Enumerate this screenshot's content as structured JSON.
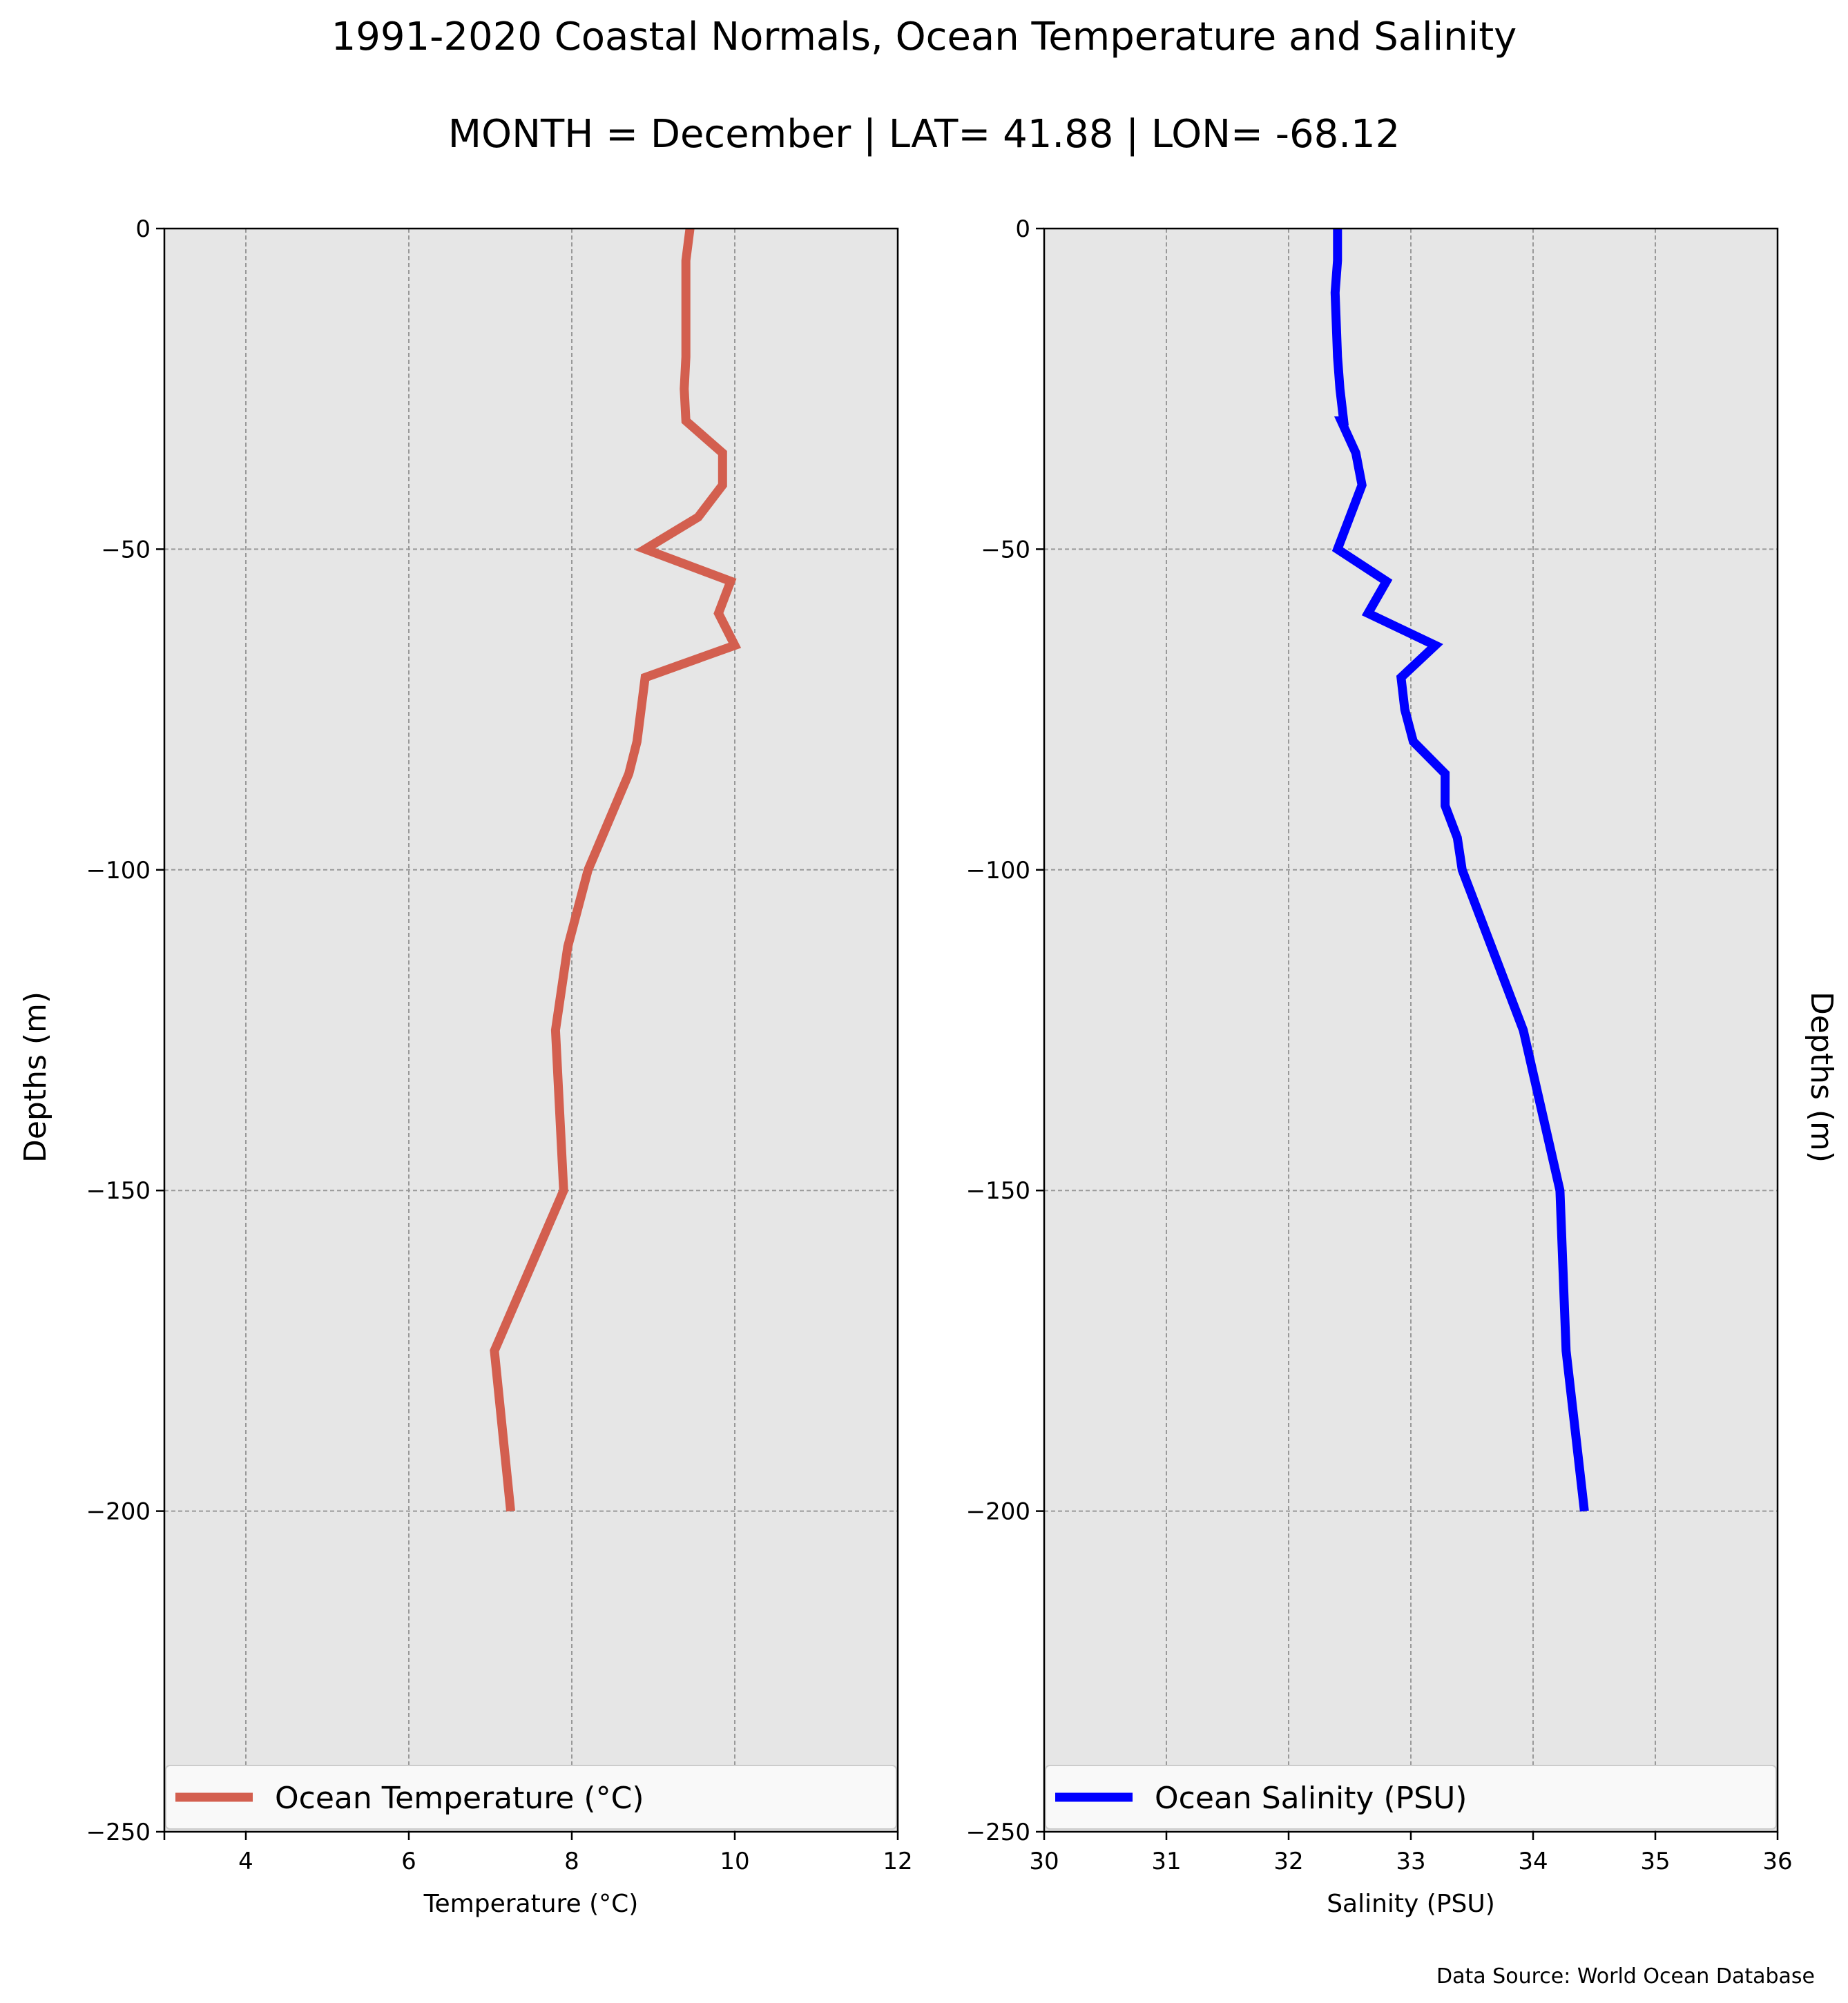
{
  "figure": {
    "title": "1991-2020 Coastal Normals, Ocean Temperature and Salinity",
    "subtitle": "MONTH = December | LAT= 41.88 | LON= -68.12",
    "source_note": "Data Source: World Ocean Database",
    "panel_background": "#e6e6e6",
    "grid_color": "#999999"
  },
  "chart_data": [
    {
      "type": "line",
      "xlabel": "Temperature ($^\\circ$C)",
      "xlabel_display": "Temperature (°C)",
      "ylabel": "Depths (m)",
      "xlim": [
        3,
        12
      ],
      "ylim": [
        -250,
        0
      ],
      "xticks": [
        4,
        6,
        8,
        10,
        12
      ],
      "xtick_labels": [
        "4",
        "6",
        "8",
        "10",
        "12"
      ],
      "yticks": [
        0,
        -50,
        -100,
        -150,
        -200,
        -250
      ],
      "ytick_labels": [
        "0",
        "−50",
        "−100",
        "−150",
        "−200",
        "−250"
      ],
      "grid": true,
      "legend_position": "bottom",
      "series": [
        {
          "name": "Ocean Temperature (°C)",
          "color": "#d35f4f",
          "x": [
            9.45,
            9.4,
            9.4,
            9.4,
            9.4,
            9.38,
            9.4,
            9.85,
            9.85,
            9.55,
            8.9,
            9.95,
            9.8,
            10.0,
            8.9,
            8.85,
            8.8,
            8.7,
            8.2,
            7.95,
            7.8,
            7.9,
            7.05,
            7.25
          ],
          "y": [
            0,
            -5,
            -10,
            -15,
            -20,
            -25,
            -30,
            -35,
            -40,
            -45,
            -50,
            -55,
            -60,
            -65,
            -70,
            -75,
            -80,
            -85,
            -100,
            -112,
            -125,
            -150,
            -175,
            -200
          ]
        }
      ]
    },
    {
      "type": "line",
      "xlabel": "Salinity (PSU)",
      "ylabel": "Depths (m)",
      "xlim": [
        30,
        36
      ],
      "ylim": [
        -250,
        0
      ],
      "xticks": [
        30,
        31,
        32,
        33,
        34,
        35,
        36
      ],
      "xtick_labels": [
        "30",
        "31",
        "32",
        "33",
        "34",
        "35",
        "36"
      ],
      "yticks": [
        0,
        -50,
        -100,
        -150,
        -200,
        -250
      ],
      "ytick_labels": [
        "0",
        "−50",
        "−100",
        "−150",
        "−200",
        "−250"
      ],
      "grid": true,
      "legend_position": "bottom",
      "series": [
        {
          "name": "Ocean Salinity (PSU)",
          "color": "#0000ff",
          "x": [
            32.4,
            32.4,
            32.38,
            32.4,
            32.42,
            32.45,
            32.43,
            32.55,
            32.6,
            32.5,
            32.4,
            32.8,
            32.65,
            33.2,
            32.92,
            32.95,
            33.02,
            33.28,
            33.28,
            33.38,
            33.42,
            33.92,
            34.22,
            34.27,
            34.42
          ],
          "y": [
            0,
            -5,
            -10,
            -20,
            -25,
            -30,
            -30,
            -35,
            -40,
            -45,
            -50,
            -55,
            -60,
            -65,
            -70,
            -75,
            -80,
            -85,
            -90,
            -95,
            -100,
            -125,
            -150,
            -175,
            -200
          ]
        }
      ]
    }
  ]
}
